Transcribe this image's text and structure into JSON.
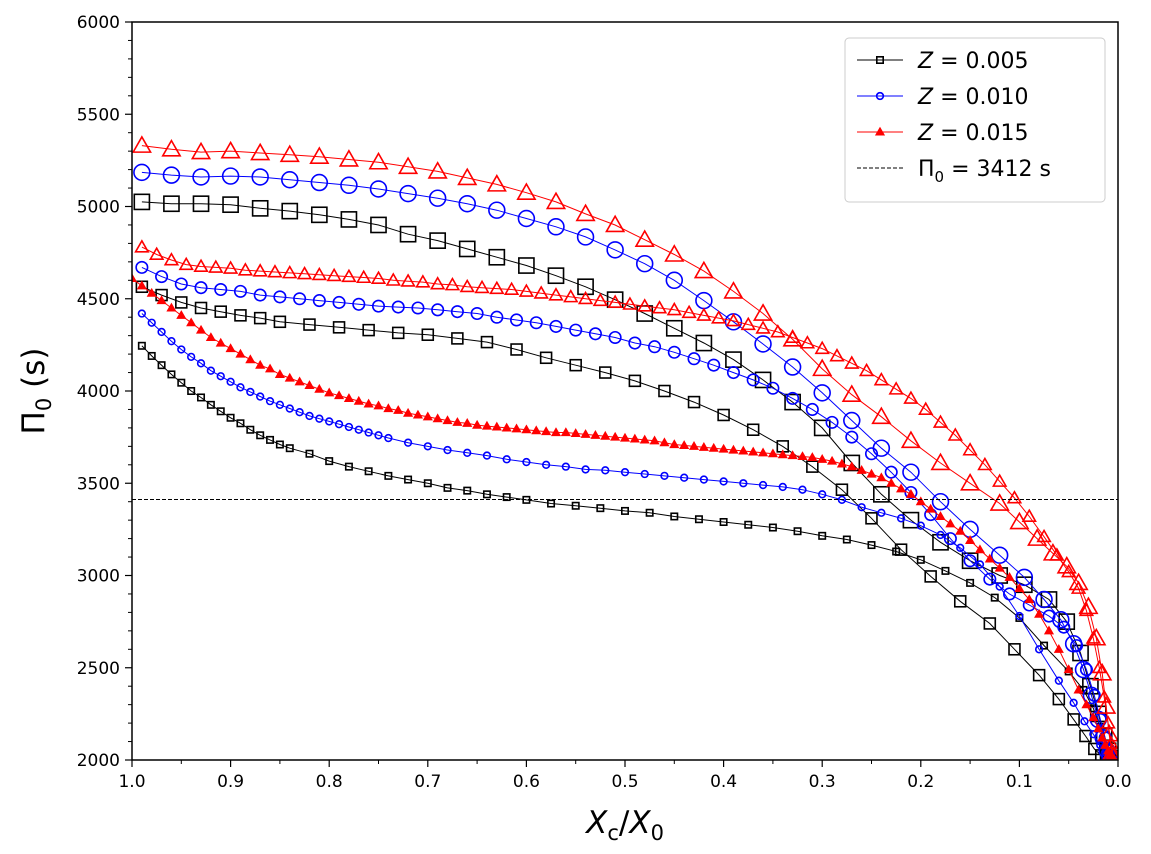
{
  "chart_data": {
    "type": "line",
    "xlabel": "X_c/X_0",
    "ylabel": "Π_0 (s)",
    "xlim": [
      1.0,
      0.0
    ],
    "ylim": [
      2000,
      6000
    ],
    "x_inverted": true,
    "grid": false,
    "legend_placement": "top-right",
    "xticks": [
      "1.0",
      "0.9",
      "0.8",
      "0.7",
      "0.6",
      "0.5",
      "0.4",
      "0.3",
      "0.2",
      "0.1",
      "0.0"
    ],
    "yticks": [
      "2000",
      "2500",
      "3000",
      "3500",
      "4000",
      "4500",
      "5000",
      "5500",
      "6000"
    ],
    "legend": [
      {
        "z_symbol": "Z",
        "text": " = 0.005",
        "color": "#000000",
        "marker": "square"
      },
      {
        "z_symbol": "Z",
        "text": " = 0.010",
        "color": "#0000ff",
        "marker": "circle"
      },
      {
        "z_symbol": "Z",
        "text": " = 0.015",
        "color": "#ff0000",
        "marker": "triangle"
      },
      {
        "pi_symbol": "Π",
        "sub": "0",
        "text": " = 3412 s",
        "color": "#000000",
        "marker": "dashed"
      }
    ],
    "reference_line": {
      "y": 3412,
      "style": "dashed",
      "color": "#000000"
    },
    "series": [
      {
        "group": "Z = 0.005",
        "mass_curve": "lower",
        "color": "#000000",
        "marker": "square",
        "marker_scale": 1.0,
        "x": [
          0.99,
          0.98,
          0.97,
          0.96,
          0.95,
          0.94,
          0.93,
          0.92,
          0.91,
          0.9,
          0.89,
          0.88,
          0.87,
          0.86,
          0.85,
          0.84,
          0.82,
          0.8,
          0.78,
          0.76,
          0.74,
          0.72,
          0.7,
          0.68,
          0.66,
          0.64,
          0.62,
          0.6,
          0.575,
          0.55,
          0.525,
          0.5,
          0.475,
          0.45,
          0.425,
          0.4,
          0.375,
          0.35,
          0.325,
          0.3,
          0.275,
          0.25,
          0.225,
          0.2,
          0.175,
          0.15,
          0.125,
          0.1,
          0.075,
          0.05,
          0.035,
          0.025,
          0.018,
          0.013,
          0.009,
          0.006,
          0.004
        ],
        "y": [
          4245,
          4190,
          4140,
          4090,
          4045,
          4000,
          3965,
          3925,
          3890,
          3855,
          3825,
          3790,
          3760,
          3735,
          3710,
          3690,
          3660,
          3620,
          3590,
          3565,
          3540,
          3520,
          3500,
          3475,
          3460,
          3440,
          3425,
          3410,
          3390,
          3378,
          3365,
          3350,
          3340,
          3320,
          3305,
          3290,
          3275,
          3260,
          3240,
          3215,
          3195,
          3165,
          3130,
          3085,
          3025,
          2960,
          2880,
          2770,
          2620,
          2480,
          2380,
          2280,
          2180,
          2090,
          2040,
          2015,
          2005
        ]
      },
      {
        "group": "Z = 0.005",
        "mass_curve": "middle",
        "color": "#000000",
        "marker": "square",
        "marker_scale": 1.3,
        "x": [
          0.99,
          0.97,
          0.95,
          0.93,
          0.91,
          0.89,
          0.87,
          0.85,
          0.82,
          0.79,
          0.76,
          0.73,
          0.7,
          0.67,
          0.64,
          0.61,
          0.58,
          0.55,
          0.52,
          0.49,
          0.46,
          0.43,
          0.4,
          0.37,
          0.34,
          0.31,
          0.28,
          0.25,
          0.22,
          0.19,
          0.16,
          0.13,
          0.105,
          0.08,
          0.06,
          0.045,
          0.033,
          0.024,
          0.017,
          0.012,
          0.008,
          0.005
        ],
        "y": [
          4565,
          4520,
          4480,
          4450,
          4430,
          4410,
          4395,
          4375,
          4360,
          4345,
          4330,
          4315,
          4305,
          4285,
          4265,
          4225,
          4180,
          4140,
          4100,
          4055,
          4000,
          3940,
          3870,
          3790,
          3700,
          3590,
          3465,
          3310,
          3140,
          2995,
          2860,
          2740,
          2600,
          2460,
          2330,
          2220,
          2130,
          2060,
          2025,
          2010,
          2005,
          2002
        ]
      },
      {
        "group": "Z = 0.005",
        "mass_curve": "upper",
        "color": "#000000",
        "marker": "square",
        "marker_scale": 1.8,
        "x": [
          0.99,
          0.96,
          0.93,
          0.9,
          0.87,
          0.84,
          0.81,
          0.78,
          0.75,
          0.72,
          0.69,
          0.66,
          0.63,
          0.6,
          0.57,
          0.54,
          0.51,
          0.48,
          0.45,
          0.42,
          0.39,
          0.36,
          0.33,
          0.3,
          0.27,
          0.24,
          0.21,
          0.18,
          0.15,
          0.12,
          0.095,
          0.07,
          0.052,
          0.038,
          0.028,
          0.02,
          0.014,
          0.01,
          0.007
        ],
        "y": [
          5025,
          5015,
          5015,
          5010,
          4990,
          4975,
          4955,
          4930,
          4900,
          4850,
          4815,
          4770,
          4725,
          4680,
          4625,
          4565,
          4495,
          4420,
          4340,
          4260,
          4170,
          4060,
          3940,
          3800,
          3610,
          3440,
          3300,
          3180,
          3080,
          3000,
          2950,
          2870,
          2750,
          2580,
          2400,
          2250,
          2130,
          2050,
          2010
        ]
      },
      {
        "group": "Z = 0.010",
        "mass_curve": "lower",
        "color": "#0000ff",
        "marker": "circle",
        "marker_scale": 1.0,
        "x": [
          0.99,
          0.98,
          0.97,
          0.96,
          0.95,
          0.94,
          0.93,
          0.92,
          0.91,
          0.9,
          0.89,
          0.88,
          0.87,
          0.86,
          0.85,
          0.84,
          0.83,
          0.82,
          0.81,
          0.8,
          0.79,
          0.78,
          0.77,
          0.76,
          0.75,
          0.74,
          0.72,
          0.7,
          0.68,
          0.66,
          0.64,
          0.62,
          0.6,
          0.58,
          0.56,
          0.54,
          0.52,
          0.5,
          0.48,
          0.46,
          0.44,
          0.42,
          0.4,
          0.38,
          0.36,
          0.34,
          0.32,
          0.3,
          0.28,
          0.26,
          0.24,
          0.22,
          0.2,
          0.18,
          0.16,
          0.14,
          0.12,
          0.1,
          0.08,
          0.06,
          0.045,
          0.034,
          0.025,
          0.018,
          0.013,
          0.009,
          0.006,
          0.004
        ],
        "y": [
          4420,
          4370,
          4320,
          4270,
          4225,
          4185,
          4150,
          4110,
          4080,
          4050,
          4020,
          3995,
          3970,
          3945,
          3925,
          3905,
          3885,
          3865,
          3850,
          3835,
          3820,
          3805,
          3790,
          3775,
          3760,
          3745,
          3720,
          3700,
          3680,
          3665,
          3650,
          3630,
          3615,
          3600,
          3590,
          3575,
          3570,
          3560,
          3550,
          3540,
          3530,
          3520,
          3510,
          3500,
          3490,
          3480,
          3465,
          3440,
          3410,
          3370,
          3340,
          3310,
          3270,
          3220,
          3150,
          3060,
          2940,
          2780,
          2600,
          2430,
          2310,
          2210,
          2140,
          2080,
          2040,
          2020,
          2008,
          2003
        ]
      },
      {
        "group": "Z = 0.010",
        "mass_curve": "middle",
        "color": "#0000ff",
        "marker": "circle",
        "marker_scale": 1.3,
        "x": [
          0.99,
          0.97,
          0.95,
          0.93,
          0.91,
          0.89,
          0.87,
          0.85,
          0.83,
          0.81,
          0.79,
          0.77,
          0.75,
          0.73,
          0.71,
          0.69,
          0.67,
          0.65,
          0.63,
          0.61,
          0.59,
          0.57,
          0.55,
          0.53,
          0.51,
          0.49,
          0.47,
          0.45,
          0.43,
          0.41,
          0.39,
          0.37,
          0.35,
          0.33,
          0.31,
          0.29,
          0.27,
          0.25,
          0.23,
          0.21,
          0.19,
          0.17,
          0.15,
          0.13,
          0.11,
          0.09,
          0.07,
          0.055,
          0.042,
          0.032,
          0.024,
          0.018,
          0.013,
          0.009,
          0.006,
          0.004
        ],
        "y": [
          4670,
          4620,
          4580,
          4560,
          4550,
          4540,
          4520,
          4510,
          4500,
          4490,
          4480,
          4470,
          4460,
          4455,
          4450,
          4440,
          4430,
          4420,
          4400,
          4385,
          4370,
          4350,
          4330,
          4310,
          4290,
          4260,
          4240,
          4210,
          4175,
          4140,
          4100,
          4060,
          4015,
          3960,
          3900,
          3830,
          3750,
          3660,
          3560,
          3450,
          3330,
          3200,
          3080,
          2980,
          2900,
          2840,
          2780,
          2720,
          2620,
          2490,
          2350,
          2220,
          2120,
          2050,
          2015,
          2005
        ]
      },
      {
        "group": "Z = 0.010",
        "mass_curve": "upper",
        "color": "#0000ff",
        "marker": "circle",
        "marker_scale": 1.8,
        "x": [
          0.99,
          0.96,
          0.93,
          0.9,
          0.87,
          0.84,
          0.81,
          0.78,
          0.75,
          0.72,
          0.69,
          0.66,
          0.63,
          0.6,
          0.57,
          0.54,
          0.51,
          0.48,
          0.45,
          0.42,
          0.39,
          0.36,
          0.33,
          0.3,
          0.27,
          0.24,
          0.21,
          0.18,
          0.15,
          0.12,
          0.095,
          0.075,
          0.058,
          0.045,
          0.035,
          0.027,
          0.02,
          0.015,
          0.011,
          0.008,
          0.005
        ],
        "y": [
          5185,
          5170,
          5160,
          5165,
          5160,
          5145,
          5130,
          5115,
          5095,
          5070,
          5045,
          5015,
          4980,
          4935,
          4890,
          4835,
          4765,
          4690,
          4600,
          4490,
          4375,
          4255,
          4130,
          3990,
          3840,
          3690,
          3560,
          3400,
          3250,
          3110,
          2990,
          2870,
          2760,
          2630,
          2490,
          2350,
          2220,
          2120,
          2050,
          2015,
          2005
        ]
      },
      {
        "group": "Z = 0.015",
        "mass_curve": "lower",
        "color": "#ff0000",
        "marker": "triangle",
        "marker_scale": 1.0,
        "x": [
          1.0,
          0.99,
          0.98,
          0.97,
          0.96,
          0.95,
          0.94,
          0.93,
          0.92,
          0.91,
          0.9,
          0.89,
          0.88,
          0.87,
          0.86,
          0.85,
          0.84,
          0.83,
          0.82,
          0.81,
          0.8,
          0.79,
          0.78,
          0.77,
          0.76,
          0.75,
          0.74,
          0.73,
          0.72,
          0.71,
          0.7,
          0.69,
          0.68,
          0.67,
          0.66,
          0.65,
          0.64,
          0.63,
          0.62,
          0.61,
          0.6,
          0.59,
          0.58,
          0.57,
          0.56,
          0.55,
          0.54,
          0.53,
          0.52,
          0.51,
          0.5,
          0.49,
          0.48,
          0.47,
          0.46,
          0.45,
          0.44,
          0.43,
          0.42,
          0.41,
          0.4,
          0.39,
          0.38,
          0.37,
          0.36,
          0.35,
          0.34,
          0.33,
          0.32,
          0.31,
          0.3,
          0.29,
          0.28,
          0.27,
          0.26,
          0.25,
          0.24,
          0.23,
          0.22,
          0.21,
          0.2,
          0.19,
          0.18,
          0.17,
          0.16,
          0.15,
          0.14,
          0.13,
          0.12,
          0.11,
          0.1,
          0.09,
          0.08,
          0.07,
          0.06,
          0.05,
          0.04,
          0.032,
          0.025,
          0.02,
          0.016,
          0.013,
          0.01,
          0.008,
          0.006,
          0.004
        ],
        "y": [
          4610,
          4570,
          4530,
          4490,
          4450,
          4410,
          4370,
          4330,
          4290,
          4260,
          4230,
          4200,
          4170,
          4140,
          4120,
          4090,
          4070,
          4050,
          4030,
          4010,
          3990,
          3975,
          3960,
          3945,
          3930,
          3920,
          3905,
          3895,
          3880,
          3870,
          3860,
          3850,
          3840,
          3830,
          3825,
          3815,
          3810,
          3805,
          3800,
          3795,
          3790,
          3785,
          3780,
          3775,
          3775,
          3770,
          3765,
          3760,
          3755,
          3750,
          3745,
          3740,
          3735,
          3730,
          3720,
          3710,
          3705,
          3700,
          3695,
          3690,
          3685,
          3680,
          3675,
          3670,
          3665,
          3660,
          3655,
          3650,
          3645,
          3640,
          3630,
          3620,
          3605,
          3590,
          3570,
          3550,
          3530,
          3500,
          3470,
          3440,
          3400,
          3360,
          3320,
          3280,
          3240,
          3190,
          3140,
          3090,
          3040,
          2990,
          2930,
          2870,
          2790,
          2700,
          2600,
          2490,
          2380,
          2300,
          2230,
          2170,
          2120,
          2080,
          2050,
          2030,
          2015,
          2005
        ]
      },
      {
        "group": "Z = 0.015",
        "mass_curve": "middle",
        "color": "#ff0000",
        "marker": "triangle",
        "marker_scale": 1.3,
        "x": [
          0.99,
          0.975,
          0.96,
          0.945,
          0.93,
          0.915,
          0.9,
          0.885,
          0.87,
          0.855,
          0.84,
          0.825,
          0.81,
          0.795,
          0.78,
          0.765,
          0.75,
          0.735,
          0.72,
          0.705,
          0.69,
          0.675,
          0.66,
          0.645,
          0.63,
          0.615,
          0.6,
          0.585,
          0.57,
          0.555,
          0.54,
          0.525,
          0.51,
          0.495,
          0.48,
          0.465,
          0.45,
          0.435,
          0.42,
          0.405,
          0.39,
          0.375,
          0.36,
          0.345,
          0.33,
          0.315,
          0.3,
          0.285,
          0.27,
          0.255,
          0.24,
          0.225,
          0.21,
          0.195,
          0.18,
          0.165,
          0.15,
          0.135,
          0.12,
          0.105,
          0.09,
          0.075,
          0.062,
          0.05,
          0.04,
          0.032,
          0.025,
          0.019,
          0.014,
          0.01,
          0.007,
          0.005
        ],
        "y": [
          4780,
          4740,
          4710,
          4685,
          4675,
          4670,
          4665,
          4655,
          4650,
          4645,
          4640,
          4635,
          4630,
          4625,
          4620,
          4615,
          4610,
          4600,
          4595,
          4590,
          4580,
          4575,
          4565,
          4560,
          4555,
          4550,
          4540,
          4530,
          4520,
          4510,
          4500,
          4490,
          4480,
          4470,
          4460,
          4450,
          4440,
          4425,
          4410,
          4395,
          4380,
          4360,
          4340,
          4320,
          4290,
          4260,
          4230,
          4190,
          4150,
          4110,
          4060,
          4010,
          3960,
          3900,
          3830,
          3760,
          3680,
          3600,
          3510,
          3420,
          3320,
          3210,
          3110,
          3020,
          2930,
          2810,
          2660,
          2500,
          2340,
          2200,
          2090,
          2030
        ]
      },
      {
        "group": "Z = 0.015",
        "mass_curve": "upper",
        "color": "#ff0000",
        "marker": "triangle",
        "marker_scale": 1.8,
        "x": [
          0.99,
          0.96,
          0.93,
          0.9,
          0.87,
          0.84,
          0.81,
          0.78,
          0.75,
          0.72,
          0.69,
          0.66,
          0.63,
          0.6,
          0.57,
          0.54,
          0.51,
          0.48,
          0.45,
          0.42,
          0.39,
          0.36,
          0.33,
          0.3,
          0.27,
          0.24,
          0.21,
          0.18,
          0.15,
          0.12,
          0.1,
          0.082,
          0.066,
          0.052,
          0.04,
          0.03,
          0.022,
          0.016,
          0.012,
          0.009,
          0.006
        ],
        "y": [
          5330,
          5310,
          5295,
          5300,
          5290,
          5280,
          5270,
          5255,
          5240,
          5215,
          5190,
          5155,
          5120,
          5075,
          5025,
          4960,
          4900,
          4820,
          4740,
          4650,
          4540,
          4420,
          4280,
          4120,
          3980,
          3860,
          3730,
          3610,
          3500,
          3390,
          3290,
          3200,
          3120,
          3050,
          2960,
          2830,
          2660,
          2470,
          2290,
          2140,
          2040
        ]
      }
    ]
  }
}
